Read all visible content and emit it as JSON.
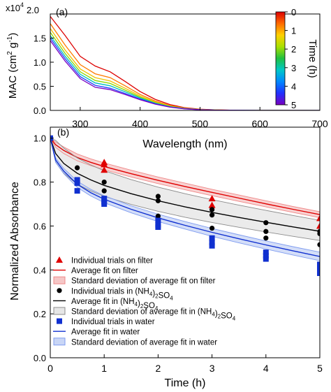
{
  "chart_data": [
    {
      "type": "line",
      "panel_label": "(a)",
      "xlabel": "Wavelength (nm)",
      "ylabel_parts": [
        "MAC (cm",
        "2",
        " g",
        "-1",
        ")"
      ],
      "xlim": [
        250,
        700
      ],
      "ylim": [
        0,
        20000
      ],
      "x_ticks": [
        300,
        400,
        500,
        600,
        700
      ],
      "y_tick_labels": [
        {
          "value": 0,
          "label": "0.0"
        },
        {
          "value": 5000,
          "label": "0.5"
        },
        {
          "value": 10000,
          "label": "1.0"
        },
        {
          "value": 15000,
          "label": "1.5"
        },
        {
          "value": 20000,
          "label": "2.0"
        }
      ],
      "y_multiplier": {
        "base": "x10",
        "exp": "4"
      },
      "colorbar": {
        "title": "Time (h)",
        "range": [
          0,
          5
        ],
        "ticks": [
          0,
          1,
          2,
          3,
          4,
          5
        ],
        "colors": [
          "#dd0000",
          "#ff6a00",
          "#ffd000",
          "#a8e000",
          "#20c040",
          "#00c8c8",
          "#0088ff",
          "#2030ff",
          "#7a00c0"
        ]
      },
      "x": [
        250,
        275,
        300,
        325,
        350,
        375,
        400,
        425,
        450,
        475,
        500,
        525,
        550,
        600,
        700
      ],
      "series": [
        {
          "time": 0,
          "color": "#dd0000",
          "values": [
            19500,
            15500,
            11200,
            9200,
            8000,
            6000,
            3900,
            2300,
            1200,
            550,
            250,
            110,
            50,
            10,
            0
          ]
        },
        {
          "time": 0.5,
          "color": "#ff7a00",
          "values": [
            18000,
            13500,
            9500,
            7600,
            6800,
            5100,
            3300,
            1950,
            1000,
            470,
            210,
            90,
            40,
            8,
            0
          ]
        },
        {
          "time": 1,
          "color": "#f2c000",
          "values": [
            17000,
            12500,
            8600,
            6800,
            6100,
            4600,
            3000,
            1750,
            900,
            420,
            190,
            80,
            35,
            7,
            0
          ]
        },
        {
          "time": 2,
          "color": "#8cd800",
          "values": [
            16200,
            11800,
            8000,
            6200,
            5600,
            4200,
            2750,
            1600,
            830,
            390,
            170,
            75,
            32,
            6,
            0
          ]
        },
        {
          "time": 3,
          "color": "#00c0c0",
          "values": [
            15500,
            11200,
            7500,
            5700,
            5100,
            3850,
            2550,
            1480,
            760,
            360,
            160,
            70,
            30,
            6,
            0
          ]
        },
        {
          "time": 4,
          "color": "#1e40ff",
          "values": [
            15000,
            10700,
            7000,
            5200,
            4600,
            3500,
            2350,
            1380,
            710,
            330,
            150,
            65,
            28,
            5,
            0
          ]
        },
        {
          "time": 5,
          "color": "#7a00c0",
          "values": [
            14500,
            10200,
            6600,
            4800,
            4300,
            3300,
            2200,
            1300,
            670,
            310,
            140,
            60,
            25,
            5,
            0
          ]
        }
      ]
    },
    {
      "type": "scatter",
      "panel_label": "(b)",
      "xlabel": "Time (h)",
      "ylabel": "Normalized Absorbance",
      "xlim": [
        0,
        5
      ],
      "ylim": [
        0,
        1.05
      ],
      "x_ticks": [
        0,
        1,
        2,
        3,
        4,
        5
      ],
      "y_tick_labels": [
        {
          "value": 0,
          "label": "0.0"
        },
        {
          "value": 0.2,
          "label": "0.2"
        },
        {
          "value": 0.4,
          "label": "0.4"
        },
        {
          "value": 0.6,
          "label": "0.6"
        },
        {
          "value": 0.8,
          "label": "0.8"
        },
        {
          "value": 1.0,
          "label": "1.0"
        }
      ],
      "curve_x": [
        0,
        0.1,
        0.25,
        0.5,
        0.75,
        1,
        1.5,
        2,
        2.5,
        3,
        3.5,
        4,
        4.5,
        5
      ],
      "series": [
        {
          "key": "filter",
          "color": "#e00000",
          "marker": "triangle",
          "legend_points": "Individual trials on filter",
          "legend_line": "Average fit on filter",
          "legend_band": "Standard deviation of average fit on filter",
          "points": [
            [
              0,
              1.0
            ],
            [
              1,
              0.89
            ],
            [
              1,
              0.88
            ],
            [
              1,
              0.855
            ],
            [
              3,
              0.725
            ],
            [
              3,
              0.695
            ],
            [
              5,
              0.635
            ],
            [
              5,
              0.6
            ]
          ],
          "fit": [
            1.0,
            0.97,
            0.944,
            0.912,
            0.89,
            0.871,
            0.838,
            0.808,
            0.78,
            0.753,
            0.727,
            0.701,
            0.676,
            0.652
          ],
          "band_upper": [
            1.0,
            0.982,
            0.96,
            0.928,
            0.906,
            0.887,
            0.854,
            0.823,
            0.795,
            0.767,
            0.741,
            0.715,
            0.689,
            0.665
          ],
          "band_lower": [
            1.0,
            0.958,
            0.93,
            0.897,
            0.875,
            0.856,
            0.823,
            0.793,
            0.765,
            0.738,
            0.712,
            0.687,
            0.662,
            0.638
          ]
        },
        {
          "key": "ammonium",
          "color": "#000000",
          "marker": "circle",
          "legend_points": "Individual trials in (NH₄)₂SO₄",
          "legend_line": "Average fit in (NH₄)₂SO₄",
          "legend_band": "Standard deviation of average fit in (NH₄)₂SO₄",
          "points": [
            [
              0,
              1.0
            ],
            [
              0.5,
              0.865
            ],
            [
              1,
              0.8
            ],
            [
              1,
              0.76
            ],
            [
              1,
              0.715
            ],
            [
              2,
              0.735
            ],
            [
              2,
              0.715
            ],
            [
              2,
              0.645
            ],
            [
              3,
              0.675
            ],
            [
              3,
              0.65
            ],
            [
              3,
              0.59
            ],
            [
              4,
              0.615
            ],
            [
              4,
              0.575
            ],
            [
              4,
              0.545
            ],
            [
              5,
              0.575
            ],
            [
              5,
              0.565
            ],
            [
              5,
              0.515
            ]
          ],
          "fit": [
            1.0,
            0.93,
            0.885,
            0.84,
            0.81,
            0.785,
            0.747,
            0.715,
            0.687,
            0.662,
            0.639,
            0.617,
            0.596,
            0.576
          ],
          "band_upper": [
            1.0,
            0.99,
            0.955,
            0.91,
            0.878,
            0.852,
            0.811,
            0.777,
            0.747,
            0.72,
            0.695,
            0.671,
            0.648,
            0.626
          ],
          "band_lower": [
            1.0,
            0.89,
            0.84,
            0.79,
            0.76,
            0.735,
            0.698,
            0.667,
            0.64,
            0.616,
            0.594,
            0.573,
            0.553,
            0.534
          ]
        },
        {
          "key": "water",
          "color": "#1030d0",
          "marker": "square",
          "legend_points": "Individual trials in water",
          "legend_line": "Average fit in water",
          "legend_band": "Standard deviation of average fit in water",
          "points": [
            [
              0,
              1.0
            ],
            [
              0.5,
              0.81
            ],
            [
              0.5,
              0.795
            ],
            [
              0.5,
              0.76
            ],
            [
              1,
              0.725
            ],
            [
              1,
              0.71
            ],
            [
              1,
              0.7
            ],
            [
              2,
              0.625
            ],
            [
              2,
              0.605
            ],
            [
              2,
              0.595
            ],
            [
              3,
              0.545
            ],
            [
              3,
              0.525
            ],
            [
              3,
              0.51
            ],
            [
              4,
              0.48
            ],
            [
              4,
              0.465
            ],
            [
              4,
              0.45
            ],
            [
              5,
              0.425
            ],
            [
              5,
              0.405
            ],
            [
              5,
              0.385
            ]
          ],
          "fit": [
            1.0,
            0.9,
            0.85,
            0.79,
            0.752,
            0.722,
            0.676,
            0.637,
            0.603,
            0.571,
            0.542,
            0.514,
            0.487,
            0.461
          ],
          "band_upper": [
            1.0,
            0.91,
            0.862,
            0.804,
            0.767,
            0.738,
            0.692,
            0.654,
            0.62,
            0.589,
            0.56,
            0.532,
            0.506,
            0.481
          ],
          "band_lower": [
            1.0,
            0.89,
            0.838,
            0.776,
            0.737,
            0.706,
            0.66,
            0.62,
            0.586,
            0.553,
            0.523,
            0.495,
            0.468,
            0.442
          ]
        }
      ]
    }
  ]
}
